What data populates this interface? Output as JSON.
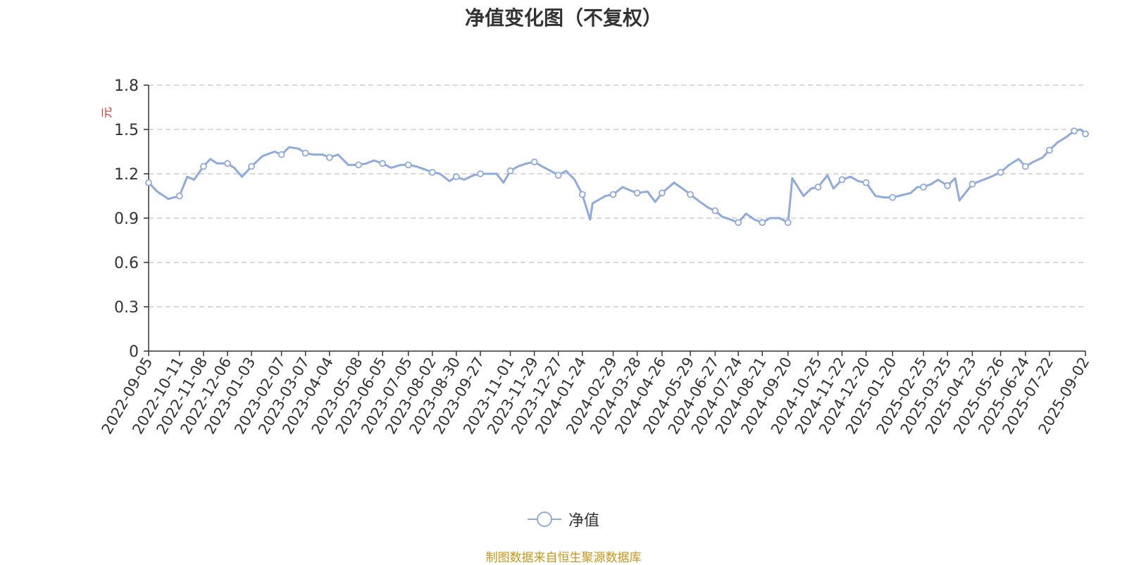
{
  "chart_data": {
    "type": "line",
    "title": "净值变化图（不复权）",
    "ylabel": "元",
    "ylim": [
      0,
      1.8
    ],
    "yticks": [
      "0",
      "0.3",
      "0.6",
      "0.9",
      "1.2",
      "1.5",
      "1.8"
    ],
    "grid": true,
    "legend_placement": "bottom-center",
    "x_tick_labels": [
      "2022-09-05",
      "2022-10-11",
      "2022-11-08",
      "2022-12-06",
      "2023-01-03",
      "2023-02-07",
      "2023-03-07",
      "2023-04-04",
      "2023-05-08",
      "2023-06-05",
      "2023-07-05",
      "2023-08-02",
      "2023-08-30",
      "2023-09-27",
      "2023-11-01",
      "2023-11-29",
      "2023-12-27",
      "2024-01-24",
      "2024-02-29",
      "2024-03-28",
      "2024-04-26",
      "2024-05-29",
      "2024-06-27",
      "2024-07-24",
      "2024-08-21",
      "2024-09-20",
      "2024-10-25",
      "2024-11-22",
      "2024-12-20",
      "2025-01-20",
      "2025-02-25",
      "2025-03-25",
      "2025-04-23",
      "2025-05-26",
      "2025-06-24",
      "2025-07-22",
      "2025-09-02"
    ],
    "series": [
      {
        "name": "净值",
        "color": "#8faadc",
        "x": [
          "2022-09-05",
          "2022-09-15",
          "2022-09-28",
          "2022-10-11",
          "2022-10-20",
          "2022-10-28",
          "2022-11-08",
          "2022-11-16",
          "2022-11-24",
          "2022-12-06",
          "2022-12-14",
          "2022-12-23",
          "2023-01-03",
          "2023-01-16",
          "2023-01-30",
          "2023-02-07",
          "2023-02-16",
          "2023-02-27",
          "2023-03-07",
          "2023-03-16",
          "2023-03-27",
          "2023-04-04",
          "2023-04-14",
          "2023-04-26",
          "2023-05-08",
          "2023-05-17",
          "2023-05-26",
          "2023-06-05",
          "2023-06-15",
          "2023-06-26",
          "2023-07-05",
          "2023-07-14",
          "2023-07-24",
          "2023-08-02",
          "2023-08-11",
          "2023-08-22",
          "2023-08-30",
          "2023-09-08",
          "2023-09-19",
          "2023-09-27",
          "2023-10-16",
          "2023-10-24",
          "2023-11-01",
          "2023-11-10",
          "2023-11-20",
          "2023-11-29",
          "2023-12-08",
          "2023-12-18",
          "2023-12-27",
          "2024-01-05",
          "2024-01-15",
          "2024-01-24",
          "2024-02-02",
          "2024-02-05",
          "2024-02-20",
          "2024-02-29",
          "2024-03-11",
          "2024-03-19",
          "2024-03-28",
          "2024-04-09",
          "2024-04-18",
          "2024-04-26",
          "2024-05-10",
          "2024-05-20",
          "2024-05-29",
          "2024-06-07",
          "2024-06-19",
          "2024-06-27",
          "2024-07-05",
          "2024-07-15",
          "2024-07-24",
          "2024-08-02",
          "2024-08-12",
          "2024-08-21",
          "2024-08-30",
          "2024-09-10",
          "2024-09-20",
          "2024-09-25",
          "2024-10-08",
          "2024-10-17",
          "2024-10-25",
          "2024-11-05",
          "2024-11-12",
          "2024-11-22",
          "2024-12-02",
          "2024-12-11",
          "2024-12-20",
          "2024-12-31",
          "2025-01-10",
          "2025-01-20",
          "2025-02-10",
          "2025-02-18",
          "2025-02-25",
          "2025-03-06",
          "2025-03-14",
          "2025-03-25",
          "2025-04-03",
          "2025-04-08",
          "2025-04-23",
          "2025-05-06",
          "2025-05-15",
          "2025-05-26",
          "2025-06-05",
          "2025-06-16",
          "2025-06-24",
          "2025-07-03",
          "2025-07-14",
          "2025-07-22",
          "2025-07-31",
          "2025-08-11",
          "2025-08-20",
          "2025-08-27",
          "2025-09-02"
        ],
        "values": [
          1.14,
          1.08,
          1.03,
          1.05,
          1.18,
          1.16,
          1.25,
          1.3,
          1.27,
          1.27,
          1.24,
          1.18,
          1.25,
          1.32,
          1.35,
          1.33,
          1.38,
          1.37,
          1.34,
          1.33,
          1.33,
          1.31,
          1.33,
          1.26,
          1.26,
          1.27,
          1.29,
          1.27,
          1.24,
          1.26,
          1.26,
          1.25,
          1.23,
          1.21,
          1.2,
          1.15,
          1.18,
          1.16,
          1.19,
          1.2,
          1.2,
          1.14,
          1.22,
          1.25,
          1.27,
          1.28,
          1.25,
          1.22,
          1.19,
          1.22,
          1.16,
          1.06,
          0.89,
          1.0,
          1.05,
          1.06,
          1.11,
          1.09,
          1.07,
          1.08,
          1.01,
          1.07,
          1.14,
          1.1,
          1.06,
          1.02,
          0.97,
          0.95,
          0.91,
          0.89,
          0.87,
          0.93,
          0.89,
          0.87,
          0.9,
          0.9,
          0.87,
          1.17,
          1.05,
          1.1,
          1.11,
          1.19,
          1.1,
          1.16,
          1.18,
          1.15,
          1.14,
          1.05,
          1.04,
          1.04,
          1.07,
          1.11,
          1.11,
          1.13,
          1.16,
          1.12,
          1.17,
          1.02,
          1.13,
          1.16,
          1.18,
          1.21,
          1.26,
          1.3,
          1.25,
          1.28,
          1.31,
          1.36,
          1.41,
          1.45,
          1.49,
          1.5,
          1.47
        ],
        "markers_at": [
          "2022-09-05",
          "2022-10-11",
          "2022-11-08",
          "2022-12-06",
          "2023-01-03",
          "2023-02-07",
          "2023-03-07",
          "2023-04-04",
          "2023-05-08",
          "2023-06-05",
          "2023-07-05",
          "2023-08-02",
          "2023-08-30",
          "2023-09-27",
          "2023-11-01",
          "2023-11-29",
          "2023-12-27",
          "2024-01-24",
          "2024-02-29",
          "2024-03-28",
          "2024-04-26",
          "2024-05-29",
          "2024-06-27",
          "2024-07-24",
          "2024-08-21",
          "2024-09-20",
          "2024-10-25",
          "2024-11-22",
          "2024-12-20",
          "2025-01-20",
          "2025-02-25",
          "2025-03-25",
          "2025-04-23",
          "2025-05-26",
          "2025-06-24",
          "2025-07-22",
          "2025-08-20",
          "2025-09-02"
        ]
      }
    ]
  },
  "footer": {
    "source": "制图数据来自恒生聚源数据库"
  }
}
